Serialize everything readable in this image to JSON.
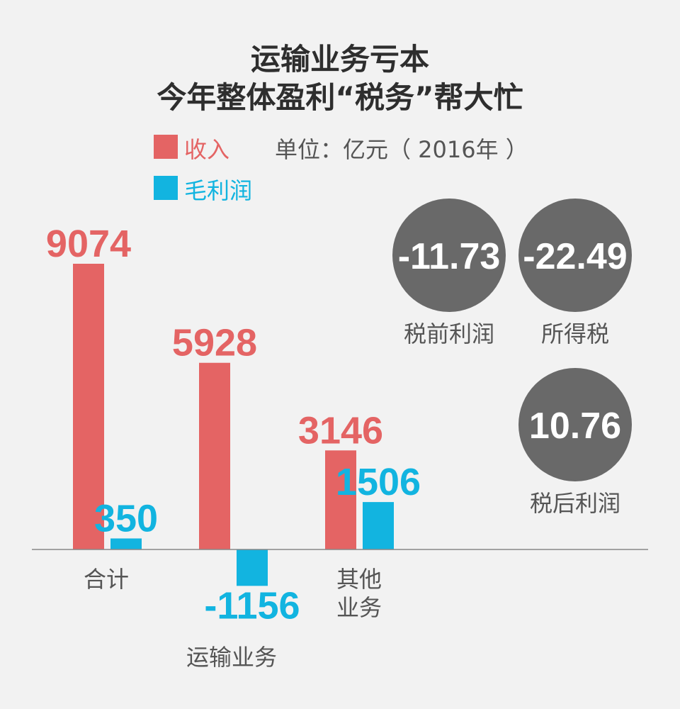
{
  "title_line1": "运输业务亏本",
  "title_line2": "今年整体盈利“税务”帮大忙",
  "unit": "单位：亿元（ 2016年 ）",
  "colors": {
    "revenue": "#e46464",
    "gross_profit": "#12b4e0",
    "circle": "#696969",
    "axis": "#888888"
  },
  "chart_data": {
    "type": "bar",
    "categories": [
      "合计",
      "运输业务",
      "其他业务"
    ],
    "category_display": [
      [
        "合计"
      ],
      [
        "运输业务"
      ],
      [
        "其他",
        "业务"
      ]
    ],
    "series": [
      {
        "name": "收入",
        "values": [
          9074,
          5928,
          3146
        ],
        "labels": [
          "9074",
          "5928",
          "3146"
        ]
      },
      {
        "name": "毛利润",
        "values": [
          350,
          -1156,
          1506
        ],
        "labels": [
          "350",
          "-1156",
          "1506"
        ]
      }
    ],
    "legend_position": "top-left",
    "grid": false
  },
  "summary": [
    {
      "value": "-11.73",
      "label": "税前利润"
    },
    {
      "value": "-22.49",
      "label": "所得税"
    },
    {
      "value": "10.76",
      "label": "税后利润"
    }
  ]
}
